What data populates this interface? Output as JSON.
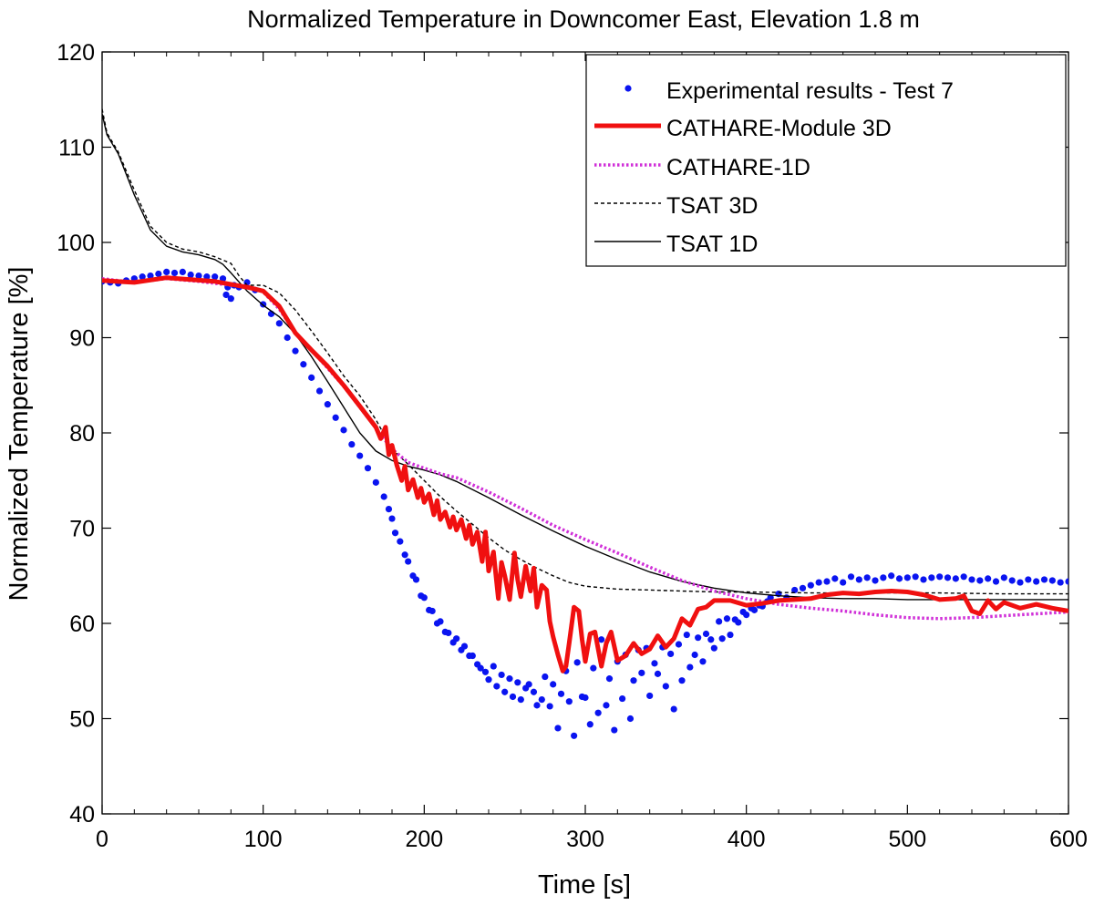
{
  "chart_data": {
    "type": "line",
    "title": "Normalized Temperature in Downcomer East, Elevation 1.8 m",
    "xlabel": "Time [s]",
    "ylabel": "Normalized Temperature [%]",
    "xlim": [
      0,
      600
    ],
    "ylim": [
      40,
      120
    ],
    "xticks": [
      0,
      100,
      200,
      300,
      400,
      500,
      600
    ],
    "yticks": [
      40,
      50,
      60,
      70,
      80,
      90,
      100,
      110,
      120
    ],
    "grid": false,
    "legend_position": "top-right",
    "colors": {
      "experimental": "#0a14f0",
      "cathare3d": "#f01010",
      "cathare1d": "#d030d8",
      "tsat3d": "#000000",
      "tsat1d": "#000000"
    },
    "series": [
      {
        "name": "Experimental results - Test 7",
        "style": "markers",
        "x": [
          0,
          5,
          10,
          15,
          20,
          25,
          30,
          35,
          40,
          45,
          50,
          55,
          60,
          65,
          70,
          75,
          77,
          78,
          80,
          82,
          85,
          90,
          95,
          100,
          105,
          110,
          115,
          120,
          125,
          130,
          135,
          140,
          145,
          150,
          155,
          160,
          165,
          170,
          175,
          178,
          180,
          182,
          185,
          188,
          190,
          193,
          195,
          198,
          200,
          203,
          205,
          208,
          210,
          213,
          215,
          218,
          220,
          223,
          225,
          228,
          230,
          233,
          235,
          238,
          240,
          243,
          245,
          248,
          250,
          253,
          255,
          258,
          260,
          263,
          265,
          268,
          270,
          273,
          275,
          278,
          280,
          283,
          285,
          288,
          290,
          293,
          295,
          298,
          300,
          303,
          305,
          308,
          310,
          313,
          315,
          318,
          320,
          323,
          325,
          328,
          330,
          333,
          335,
          338,
          340,
          343,
          345,
          348,
          350,
          353,
          355,
          358,
          360,
          363,
          365,
          368,
          370,
          373,
          375,
          378,
          380,
          383,
          385,
          388,
          390,
          393,
          395,
          398,
          400,
          403,
          405,
          408,
          410,
          413,
          415,
          420,
          425,
          430,
          435,
          440,
          445,
          450,
          455,
          460,
          465,
          470,
          475,
          480,
          485,
          490,
          495,
          500,
          505,
          510,
          515,
          520,
          525,
          530,
          535,
          540,
          545,
          550,
          555,
          560,
          565,
          570,
          575,
          580,
          585,
          590,
          595,
          600
        ],
        "y": [
          95.9,
          95.8,
          95.7,
          96.0,
          96.2,
          96.4,
          96.5,
          96.7,
          96.9,
          96.8,
          96.9,
          96.6,
          96.5,
          96.4,
          96.4,
          96.2,
          94.5,
          95.3,
          94.1,
          95.5,
          95.3,
          95.8,
          95.0,
          93.5,
          92.5,
          91.5,
          90.0,
          88.6,
          87.2,
          85.8,
          84.4,
          83.0,
          81.6,
          80.3,
          78.8,
          77.6,
          76.3,
          74.8,
          73.3,
          72.0,
          71.0,
          69.5,
          68.6,
          67.2,
          66.5,
          65.0,
          64.6,
          62.9,
          62.7,
          61.4,
          61.3,
          60.0,
          60.2,
          59.1,
          59.0,
          58.0,
          58.4,
          57.2,
          57.6,
          56.6,
          56.6,
          55.7,
          55.3,
          54.9,
          54.1,
          55.5,
          53.4,
          54.6,
          52.8,
          54.2,
          52.3,
          53.8,
          52.0,
          53.2,
          53.6,
          52.8,
          51.4,
          52.0,
          54.4,
          51.3,
          53.6,
          49.0,
          52.6,
          55.0,
          51.8,
          48.2,
          55.9,
          52.3,
          52.2,
          49.4,
          55.3,
          50.6,
          58.3,
          51.4,
          54.2,
          48.8,
          56.0,
          52.1,
          56.7,
          50.0,
          54.0,
          57.2,
          54.8,
          57.4,
          52.4,
          55.8,
          54.7,
          57.5,
          53.4,
          56.8,
          51.0,
          57.8,
          54.0,
          58.8,
          55.4,
          56.7,
          58.5,
          56.0,
          58.9,
          58.3,
          57.4,
          60.2,
          58.4,
          60.5,
          58.8,
          60.4,
          60.1,
          61.2,
          60.9,
          61.6,
          61.4,
          61.9,
          61.8,
          62.3,
          62.7,
          63.1,
          62.7,
          63.5,
          63.7,
          64.0,
          64.3,
          64.4,
          64.7,
          64.3,
          64.9,
          64.6,
          64.8,
          64.5,
          64.8,
          65.0,
          64.7,
          64.8,
          64.9,
          64.6,
          64.8,
          64.9,
          64.8,
          64.7,
          64.9,
          64.6,
          64.5,
          64.7,
          64.4,
          64.8,
          64.5,
          64.3,
          64.6,
          64.4,
          64.6,
          64.5,
          64.3,
          64.4
        ]
      },
      {
        "name": "CATHARE-Module 3D",
        "style": "thick-line",
        "x": [
          0,
          20,
          40,
          55,
          70,
          80,
          90,
          100,
          110,
          120,
          130,
          140,
          150,
          160,
          170,
          173,
          176,
          178,
          180,
          183,
          186,
          188,
          190,
          193,
          196,
          198,
          200,
          203,
          206,
          208,
          210,
          213,
          216,
          218,
          220,
          223,
          226,
          228,
          230,
          233,
          236,
          238,
          240,
          243,
          246,
          248,
          250,
          253,
          256,
          258,
          260,
          263,
          266,
          268,
          270,
          273,
          276,
          278,
          280,
          283,
          286,
          288,
          290,
          293,
          296,
          298,
          300,
          303,
          306,
          310,
          313,
          316,
          320,
          325,
          330,
          335,
          340,
          345,
          350,
          355,
          360,
          365,
          370,
          375,
          380,
          390,
          400,
          410,
          420,
          430,
          440,
          450,
          460,
          470,
          480,
          490,
          500,
          510,
          520,
          530,
          535,
          540,
          545,
          550,
          555,
          560,
          570,
          580,
          590,
          600
        ],
        "y": [
          96.0,
          95.8,
          96.3,
          96.1,
          95.9,
          95.6,
          95.3,
          94.9,
          93.3,
          90.5,
          88.7,
          87.0,
          85.0,
          82.8,
          80.6,
          79.4,
          80.6,
          77.7,
          78.7,
          76.6,
          75.0,
          76.5,
          74.0,
          75.1,
          73.2,
          74.2,
          72.7,
          73.6,
          71.4,
          72.9,
          70.9,
          71.7,
          70.1,
          71.2,
          69.8,
          70.9,
          68.9,
          70.3,
          68.3,
          69.6,
          66.5,
          69.6,
          65.5,
          67.5,
          62.6,
          66.4,
          65.0,
          62.5,
          67.4,
          64.6,
          62.8,
          66.0,
          63.4,
          65.8,
          61.7,
          64.0,
          63.5,
          60.2,
          58.6,
          56.7,
          55.0,
          55.5,
          57.9,
          61.7,
          61.3,
          58.3,
          56.0,
          58.9,
          59.1,
          55.5,
          57.9,
          59.1,
          56.1,
          56.6,
          57.9,
          56.8,
          57.3,
          58.7,
          57.5,
          58.4,
          60.5,
          59.8,
          61.5,
          61.7,
          62.4,
          62.4,
          61.9,
          62.1,
          62.4,
          62.5,
          62.6,
          63.0,
          63.2,
          63.1,
          63.3,
          63.4,
          63.3,
          63.0,
          62.5,
          62.6,
          62.9,
          61.3,
          61.0,
          62.4,
          61.5,
          62.2,
          61.6,
          62.0,
          61.6,
          61.3
        ]
      },
      {
        "name": "CATHARE-1D",
        "style": "dotted-line",
        "x": [
          0,
          20,
          40,
          60,
          80,
          90,
          100,
          110,
          120,
          130,
          140,
          150,
          160,
          170,
          180,
          190,
          200,
          210,
          220,
          240,
          260,
          280,
          300,
          320,
          340,
          360,
          380,
          400,
          420,
          440,
          460,
          480,
          500,
          520,
          540,
          560,
          580,
          600
        ],
        "y": [
          96.2,
          95.8,
          96.2,
          95.9,
          95.5,
          95.4,
          94.8,
          93.0,
          90.5,
          88.7,
          86.8,
          84.9,
          82.7,
          80.5,
          78.3,
          76.9,
          76.3,
          75.7,
          75.3,
          73.8,
          72.1,
          70.3,
          68.8,
          67.4,
          65.9,
          64.5,
          63.4,
          62.6,
          62.0,
          61.6,
          61.3,
          60.9,
          60.6,
          60.5,
          60.6,
          60.8,
          61.0,
          61.2
        ]
      },
      {
        "name": "TSAT 3D",
        "style": "dashed-line",
        "x": [
          0,
          3,
          10,
          20,
          30,
          40,
          50,
          60,
          70,
          80,
          85,
          90,
          100,
          110,
          120,
          130,
          140,
          150,
          160,
          170,
          180,
          190,
          200,
          210,
          220,
          230,
          240,
          250,
          260,
          270,
          280,
          290,
          300,
          320,
          340,
          360,
          380,
          400,
          440,
          480,
          520,
          560,
          600
        ],
        "y": [
          114.0,
          111.5,
          109.5,
          105.5,
          101.7,
          100.0,
          99.3,
          99.0,
          98.5,
          97.8,
          96.5,
          95.5,
          95.5,
          94.7,
          92.9,
          90.7,
          88.4,
          86.0,
          83.9,
          81.4,
          78.3,
          76.7,
          75.0,
          73.3,
          71.8,
          70.4,
          69.0,
          67.7,
          66.7,
          65.8,
          65.0,
          64.3,
          63.9,
          63.6,
          63.5,
          63.4,
          63.3,
          63.3,
          63.2,
          63.2,
          63.2,
          63.1,
          63.1
        ]
      },
      {
        "name": "TSAT 1D",
        "style": "solid-line",
        "x": [
          0,
          3,
          10,
          20,
          30,
          40,
          50,
          60,
          70,
          75,
          80,
          90,
          100,
          110,
          120,
          130,
          140,
          150,
          160,
          170,
          180,
          190,
          200,
          210,
          220,
          240,
          260,
          280,
          300,
          320,
          340,
          360,
          380,
          400,
          420,
          440,
          460,
          480,
          500,
          520,
          540,
          560,
          580,
          600
        ],
        "y": [
          113.5,
          111.3,
          109.3,
          105.0,
          101.3,
          99.6,
          99.0,
          98.7,
          98.2,
          97.7,
          96.8,
          94.9,
          93.4,
          92.2,
          90.4,
          88.0,
          85.4,
          82.7,
          80.0,
          78.1,
          77.1,
          76.5,
          76.1,
          75.6,
          74.9,
          73.2,
          71.4,
          69.7,
          68.1,
          66.7,
          65.4,
          64.4,
          63.7,
          63.2,
          62.9,
          62.7,
          62.6,
          62.6,
          62.5,
          62.5,
          62.5,
          62.5,
          62.5,
          62.5
        ]
      }
    ]
  }
}
